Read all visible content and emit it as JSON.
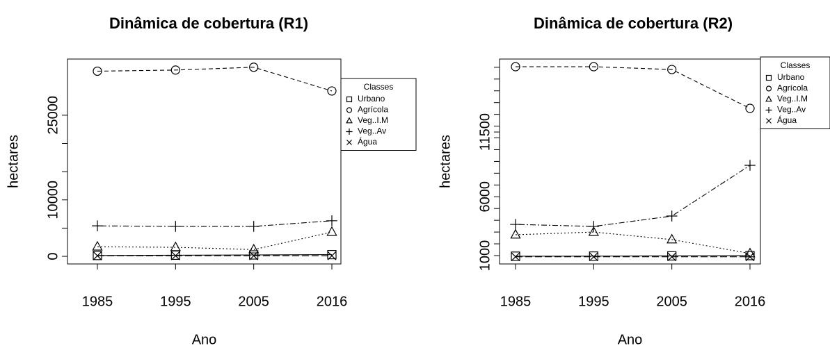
{
  "chart_data": [
    {
      "type": "line",
      "title": "Dinâmica de cobertura (R1)",
      "xlabel": "Ano",
      "ylabel": "hectares",
      "categories": [
        "1985",
        "1995",
        "2005",
        "2016"
      ],
      "series": [
        {
          "name": "Urbano",
          "color": "#000000",
          "marker": "square",
          "dash": "solid",
          "values": [
            150,
            200,
            250,
            300
          ]
        },
        {
          "name": "Agrícola",
          "color": "#000000",
          "marker": "circle",
          "dash": "dashed",
          "values": [
            32800,
            33000,
            33500,
            29300
          ]
        },
        {
          "name": "Veg..I.M",
          "color": "#000000",
          "marker": "triangle",
          "dash": "dotted",
          "values": [
            1700,
            1600,
            1200,
            4300
          ]
        },
        {
          "name": "Veg..Av",
          "color": "#000000",
          "marker": "plus",
          "dash": "dotdash",
          "values": [
            5400,
            5300,
            5300,
            6300
          ]
        },
        {
          "name": "Água",
          "color": "#000000",
          "marker": "cross",
          "dash": "longdash",
          "values": [
            100,
            100,
            100,
            100
          ]
        }
      ],
      "ylim": [
        -1350,
        34950
      ],
      "yticks": [
        0,
        10000,
        25000
      ],
      "minor_yticks": [
        5000,
        15000,
        20000
      ],
      "legend_title": "Classes",
      "legend": "top-right"
    },
    {
      "type": "line",
      "title": "Dinâmica de cobertura (R2)",
      "xlabel": "Ano",
      "ylabel": "hectares",
      "categories": [
        "1985",
        "1995",
        "2005",
        "2016"
      ],
      "series": [
        {
          "name": "Urbano",
          "color": "#000000",
          "marker": "square",
          "dash": "solid",
          "values": [
            950,
            960,
            980,
            1000
          ]
        },
        {
          "name": "Agrícola",
          "color": "#000000",
          "marker": "circle",
          "dash": "dashed",
          "values": [
            17050,
            17050,
            16810,
            13510
          ]
        },
        {
          "name": "Veg..I.M",
          "color": "#000000",
          "marker": "triangle",
          "dash": "dotted",
          "values": [
            2770,
            3000,
            2360,
            1180
          ]
        },
        {
          "name": "Veg..Av",
          "color": "#000000",
          "marker": "plus",
          "dash": "dotdash",
          "values": [
            3650,
            3480,
            4360,
            8670
          ]
        },
        {
          "name": "Água",
          "color": "#000000",
          "marker": "cross",
          "dash": "longdash",
          "values": [
            900,
            900,
            900,
            900
          ]
        }
      ],
      "ylim": [
        290,
        17700
      ],
      "yticks": [
        1000,
        6000,
        11500
      ],
      "minor_yticks": [
        2000,
        3000,
        4000,
        5000,
        7000,
        8000,
        9000,
        10000,
        11000,
        12000,
        13000,
        14000,
        15000,
        16000,
        17000
      ],
      "legend_title": "Classes",
      "legend": "top-right"
    }
  ]
}
